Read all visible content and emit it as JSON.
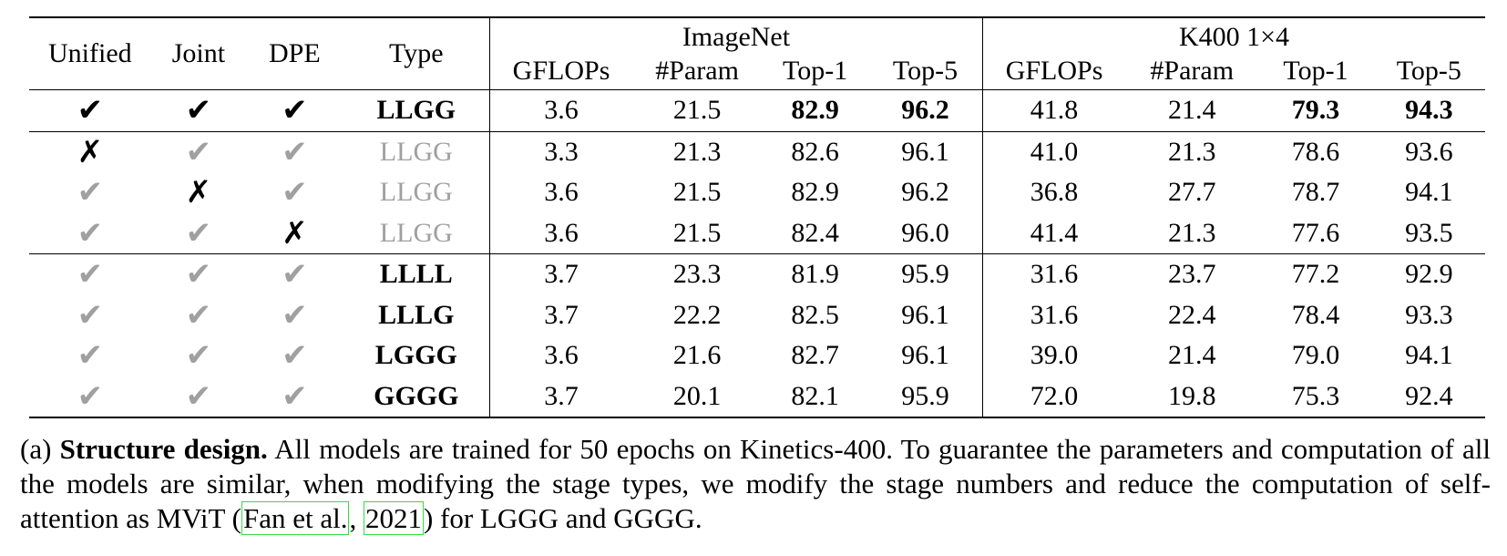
{
  "table": {
    "headers": {
      "unified": "Unified",
      "joint": "Joint",
      "dpe": "DPE",
      "type": "Type",
      "group_imagenet": "ImageNet",
      "group_k400": "K400 1×4",
      "gflops": "GFLOPs",
      "param": "#Param",
      "top1": "Top-1",
      "top5": "Top-5"
    },
    "check_mark": "✔",
    "cross_mark": "✗",
    "rows": [
      {
        "unified": "check",
        "joint": "check",
        "dpe": "check",
        "type": "LLGG",
        "type_style": "bold",
        "in_gflops": "3.6",
        "in_param": "21.5",
        "in_top1": "82.9",
        "in_top5": "96.2",
        "k_gflops": "41.8",
        "k_param": "21.4",
        "k_top1": "79.3",
        "k_top5": "94.3",
        "best": true
      },
      {
        "unified": "cross",
        "joint": "check-gray",
        "dpe": "check-gray",
        "type": "LLGG",
        "type_style": "gray",
        "in_gflops": "3.3",
        "in_param": "21.3",
        "in_top1": "82.6",
        "in_top5": "96.1",
        "k_gflops": "41.0",
        "k_param": "21.3",
        "k_top1": "78.6",
        "k_top5": "93.6"
      },
      {
        "unified": "check-gray",
        "joint": "cross",
        "dpe": "check-gray",
        "type": "LLGG",
        "type_style": "gray",
        "in_gflops": "3.6",
        "in_param": "21.5",
        "in_top1": "82.9",
        "in_top5": "96.2",
        "k_gflops": "36.8",
        "k_param": "27.7",
        "k_top1": "78.7",
        "k_top5": "94.1"
      },
      {
        "unified": "check-gray",
        "joint": "check-gray",
        "dpe": "cross",
        "type": "LLGG",
        "type_style": "gray",
        "in_gflops": "3.6",
        "in_param": "21.5",
        "in_top1": "82.4",
        "in_top5": "96.0",
        "k_gflops": "41.4",
        "k_param": "21.3",
        "k_top1": "77.6",
        "k_top5": "93.5"
      },
      {
        "unified": "check-gray",
        "joint": "check-gray",
        "dpe": "check-gray",
        "type": "LLLL",
        "type_style": "bold",
        "in_gflops": "3.7",
        "in_param": "23.3",
        "in_top1": "81.9",
        "in_top5": "95.9",
        "k_gflops": "31.6",
        "k_param": "23.7",
        "k_top1": "77.2",
        "k_top5": "92.9"
      },
      {
        "unified": "check-gray",
        "joint": "check-gray",
        "dpe": "check-gray",
        "type": "LLLG",
        "type_style": "bold",
        "in_gflops": "3.7",
        "in_param": "22.2",
        "in_top1": "82.5",
        "in_top5": "96.1",
        "k_gflops": "31.6",
        "k_param": "22.4",
        "k_top1": "78.4",
        "k_top5": "93.3"
      },
      {
        "unified": "check-gray",
        "joint": "check-gray",
        "dpe": "check-gray",
        "type": "LGGG",
        "type_style": "bold",
        "in_gflops": "3.6",
        "in_param": "21.6",
        "in_top1": "82.7",
        "in_top5": "96.1",
        "k_gflops": "39.0",
        "k_param": "21.4",
        "k_top1": "79.0",
        "k_top5": "94.1"
      },
      {
        "unified": "check-gray",
        "joint": "check-gray",
        "dpe": "check-gray",
        "type": "GGGG",
        "type_style": "bold",
        "in_gflops": "3.7",
        "in_param": "20.1",
        "in_top1": "82.1",
        "in_top5": "95.9",
        "k_gflops": "72.0",
        "k_param": "19.8",
        "k_top1": "75.3",
        "k_top5": "92.4"
      }
    ]
  },
  "caption": {
    "label": "(a) ",
    "bold_title": "Structure design.",
    "text_before_cite": " All models are trained for 50 epochs on Kinetics-400. To guarantee the parameters and computation of all the models are similar, when modifying the stage types, we modify the stage numbers and reduce the computation of self-attention as MViT (",
    "cite_author": "Fan et al.",
    "cite_sep": ", ",
    "cite_year": "2021",
    "text_after_cite": ") for LGGG and GGGG."
  }
}
